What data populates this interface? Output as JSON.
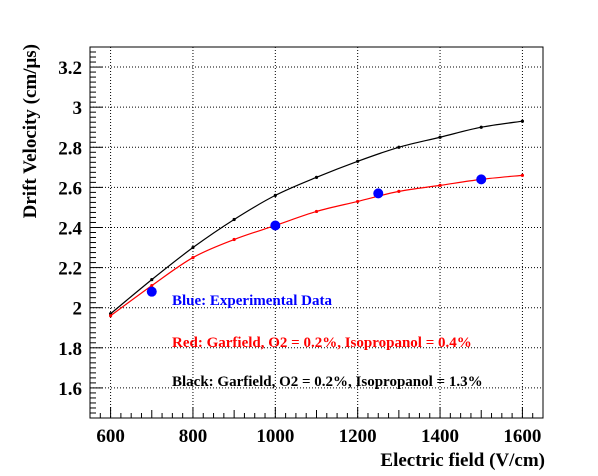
{
  "chart_data": {
    "type": "scatter",
    "xlabel": "Electric field (V/cm)",
    "ylabel": "Drift Velocity (cm/μs)",
    "xlim": [
      550,
      1650
    ],
    "ylim": [
      1.45,
      3.3
    ],
    "xticks": [
      600,
      800,
      1000,
      1200,
      1400,
      1600
    ],
    "yticks": [
      1.6,
      1.8,
      2,
      2.2,
      2.4,
      2.6,
      2.8,
      3,
      3.2
    ],
    "ytick_labels": [
      "1.6",
      "1.8",
      "2",
      "2.2",
      "2.4",
      "2.6",
      "2.8",
      "3",
      "3.2"
    ],
    "grid": true,
    "series": [
      {
        "color": "#000000",
        "marker": "small-dot",
        "line": true,
        "x": [
          600,
          700,
          800,
          900,
          1000,
          1100,
          1200,
          1300,
          1400,
          1500,
          1600
        ],
        "y": [
          1.97,
          2.14,
          2.3,
          2.44,
          2.56,
          2.65,
          2.73,
          2.8,
          2.85,
          2.9,
          2.93
        ]
      },
      {
        "color": "#ff0000",
        "marker": "small-dot",
        "line": true,
        "x": [
          600,
          700,
          800,
          900,
          1000,
          1100,
          1200,
          1300,
          1400,
          1500,
          1600
        ],
        "y": [
          1.96,
          2.11,
          2.25,
          2.34,
          2.41,
          2.48,
          2.53,
          2.58,
          2.61,
          2.64,
          2.66
        ]
      },
      {
        "color": "#0000ff",
        "marker": "large-dot",
        "line": false,
        "x": [
          700,
          1000,
          1250,
          1500
        ],
        "y": [
          2.08,
          2.41,
          2.57,
          2.64
        ]
      }
    ],
    "annotations": [
      {
        "text": "Blue: Experimental Data",
        "color": "#0000ff"
      },
      {
        "text": "Red: Garfield, O2 = 0.2%, Isopropanol = 0.4%",
        "color": "#ff0000"
      },
      {
        "text": "Black: Garfield, O2 = 0.2%, Isopropanol = 1.3%",
        "color": "#000000"
      }
    ]
  }
}
